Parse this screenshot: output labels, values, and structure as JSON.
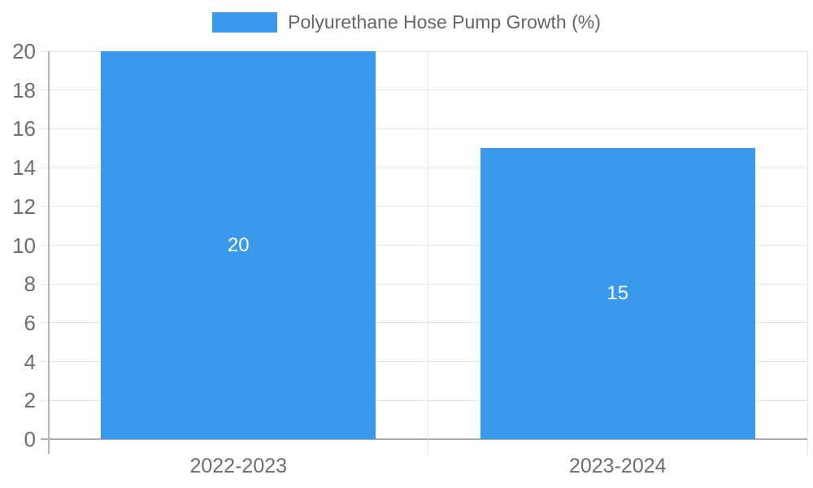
{
  "legend": {
    "label": "Polyurethane Hose Pump Growth (%)"
  },
  "colors": {
    "bar": "#3B99EC",
    "grid": "#e6e6e6",
    "axis_line": "#b5b5b5",
    "zero_line": "#ababab",
    "tick_text": "#6e6e6e",
    "legend_text": "#666666",
    "value_label": "#ffffff",
    "background": "#ffffff"
  },
  "chart_data": {
    "type": "bar",
    "title": "Polyurethane Hose Pump Growth (%)",
    "categories": [
      "2022-2023",
      "2023-2024"
    ],
    "values": [
      20,
      15
    ],
    "series": [
      {
        "name": "Polyurethane Hose Pump Growth (%)",
        "values": [
          20,
          15
        ]
      }
    ],
    "value_labels": [
      "20",
      "15"
    ],
    "value_label_position": "inside-center",
    "xlabel": "",
    "ylabel": "",
    "ylim": [
      0,
      20
    ],
    "ytick_step": 2,
    "ytick_labels": [
      "0",
      "2",
      "4",
      "6",
      "8",
      "10",
      "12",
      "14",
      "16",
      "18",
      "20"
    ],
    "grid": true,
    "legend_position": "top-center"
  }
}
